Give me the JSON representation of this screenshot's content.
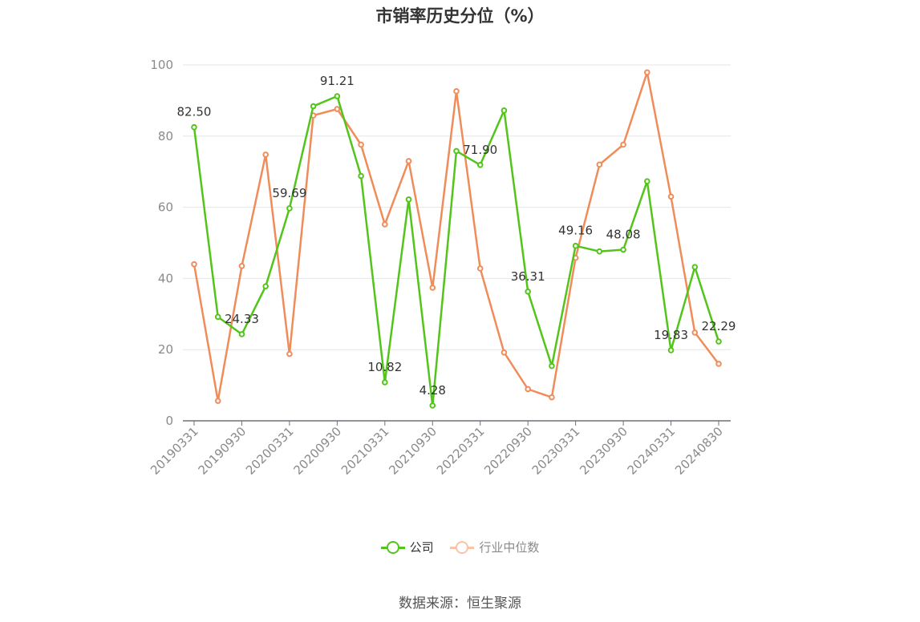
{
  "chart_data": {
    "type": "line",
    "title": "市销率历史分位（%）",
    "x": [
      "20190331",
      "20190630",
      "20190930",
      "20191231",
      "20200331",
      "20200630",
      "20200930",
      "20201231",
      "20210331",
      "20210630",
      "20210930",
      "20211231",
      "20220331",
      "20220630",
      "20220930",
      "20221231",
      "20230331",
      "20230630",
      "20230930",
      "20231231",
      "20240331",
      "20240630",
      "20240830"
    ],
    "x_tick_labels": [
      "20190331",
      "20190930",
      "20200331",
      "20200930",
      "20210331",
      "20210930",
      "20220331",
      "20220930",
      "20230331",
      "20230930",
      "20240331",
      "20240830"
    ],
    "ylim": [
      0,
      100
    ],
    "y_ticks": [
      0,
      20,
      40,
      60,
      80,
      100
    ],
    "grid": true,
    "legend": "bottom",
    "series": [
      {
        "name": "公司",
        "color": "#52c41a",
        "values": [
          82.5,
          29.2,
          24.33,
          37.8,
          59.69,
          88.4,
          91.21,
          68.8,
          10.82,
          62.2,
          4.28,
          75.8,
          71.9,
          87.2,
          36.31,
          15.4,
          49.16,
          47.6,
          48.08,
          67.3,
          19.83,
          43.2,
          22.29
        ],
        "data_labels": {
          "0": "82.50",
          "2": "24.33",
          "4": "59.69",
          "6": "91.21",
          "8": "10.82",
          "10": "4.28",
          "12": "71.90",
          "14": "36.31",
          "16": "49.16",
          "18": "48.08",
          "20": "19.83",
          "22": "22.29"
        }
      },
      {
        "name": "行业中位数",
        "color": "#f08c5a",
        "values": [
          44.0,
          5.6,
          43.5,
          74.8,
          18.8,
          85.8,
          87.6,
          77.6,
          55.2,
          73.0,
          37.4,
          92.6,
          42.8,
          19.2,
          8.9,
          6.6,
          45.8,
          72.0,
          77.6,
          97.9,
          63.0,
          24.8,
          16.0
        ]
      }
    ]
  },
  "footer": {
    "source": "数据来源：恒生聚源"
  }
}
